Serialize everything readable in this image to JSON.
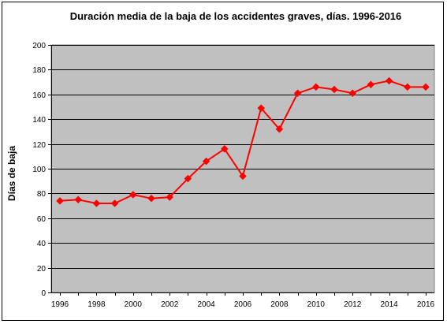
{
  "chart_data": {
    "type": "line",
    "title": "Duración media de la baja de los accidentes graves, días. 1996-2016",
    "xlabel": "",
    "ylabel": "Días de baja",
    "x": [
      1996,
      1997,
      1998,
      1999,
      2000,
      2001,
      2002,
      2003,
      2004,
      2005,
      2006,
      2007,
      2008,
      2009,
      2010,
      2011,
      2012,
      2013,
      2014,
      2015,
      2016
    ],
    "series": [
      {
        "values": [
          74,
          75,
          72,
          72,
          79,
          76,
          77,
          92,
          106,
          116,
          94,
          149,
          132,
          161,
          166,
          164,
          161,
          168,
          171,
          166,
          166
        ]
      }
    ],
    "ylim": [
      0,
      200
    ],
    "yticks": [
      "0",
      "20",
      "40",
      "60",
      "80",
      "100",
      "120",
      "140",
      "160",
      "180",
      "200"
    ],
    "xticks": [
      "1996",
      "1998",
      "2000",
      "2002",
      "2004",
      "2006",
      "2008",
      "2010",
      "2012",
      "2014",
      "2016"
    ],
    "grid": true,
    "legend": "none",
    "colors": {
      "plot_background": "#c0c0c0",
      "line": "#ff0000",
      "marker": "#ff0000",
      "gridline": "#000000"
    }
  }
}
